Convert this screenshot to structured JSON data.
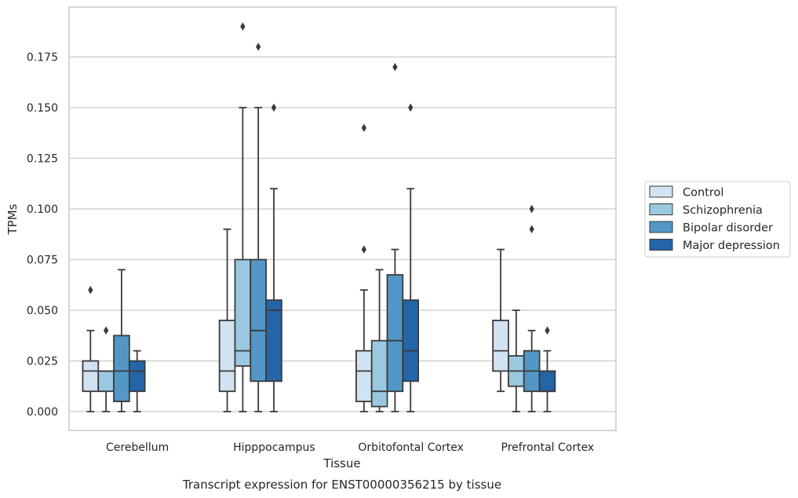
{
  "chart_data": {
    "type": "boxplot",
    "caption": "Transcript expression for ENST00000356215 by tissue",
    "xlabel": "Tissue",
    "ylabel": "TPMs",
    "ylim": [
      -0.018,
      0.198
    ],
    "yticks": [
      0.0,
      0.025,
      0.05,
      0.075,
      0.1,
      0.125,
      0.15,
      0.175
    ],
    "ytick_labels": [
      "0.000",
      "0.025",
      "0.050",
      "0.075",
      "0.100",
      "0.125",
      "0.150",
      "0.175"
    ],
    "grid": "horizontal",
    "legend_position": "right",
    "categories": [
      "Cerebellum",
      "Hipppocampus",
      "Orbitofontal Cortex",
      "Prefrontal Cortex"
    ],
    "series": [
      {
        "name": "Control",
        "color": "#d1e2f2",
        "boxes": [
          {
            "whislo": 0.0,
            "q1": 0.01,
            "med": 0.02,
            "q3": 0.025,
            "whishi": 0.04,
            "fliers": [
              0.06
            ]
          },
          {
            "whislo": 0.0,
            "q1": 0.01,
            "med": 0.02,
            "q3": 0.045,
            "whishi": 0.09,
            "fliers": []
          },
          {
            "whislo": 0.0,
            "q1": 0.005,
            "med": 0.02,
            "q3": 0.03,
            "whishi": 0.06,
            "fliers": [
              0.08,
              0.14
            ]
          },
          {
            "whislo": 0.01,
            "q1": 0.02,
            "med": 0.03,
            "q3": 0.045,
            "whishi": 0.08,
            "fliers": []
          }
        ]
      },
      {
        "name": "Schizophrenia",
        "color": "#9ac8e0",
        "boxes": [
          {
            "whislo": 0.0,
            "q1": 0.01,
            "med": 0.02,
            "q3": 0.02,
            "whishi": 0.02,
            "fliers": [
              0.04
            ]
          },
          {
            "whislo": 0.0,
            "q1": 0.0225,
            "med": 0.03,
            "q3": 0.075,
            "whishi": 0.15,
            "fliers": [
              0.19
            ]
          },
          {
            "whislo": 0.0,
            "q1": 0.0025,
            "med": 0.01,
            "q3": 0.035,
            "whishi": 0.07,
            "fliers": []
          },
          {
            "whislo": 0.0,
            "q1": 0.0125,
            "med": 0.02,
            "q3": 0.0275,
            "whishi": 0.05,
            "fliers": []
          }
        ]
      },
      {
        "name": "Bipolar disorder",
        "color": "#5297c6",
        "boxes": [
          {
            "whislo": 0.0,
            "q1": 0.005,
            "med": 0.02,
            "q3": 0.0375,
            "whishi": 0.07,
            "fliers": []
          },
          {
            "whislo": 0.0,
            "q1": 0.015,
            "med": 0.04,
            "q3": 0.075,
            "whishi": 0.15,
            "fliers": [
              0.18
            ]
          },
          {
            "whislo": 0.0,
            "q1": 0.01,
            "med": 0.035,
            "q3": 0.0675,
            "whishi": 0.08,
            "fliers": [
              0.17
            ]
          },
          {
            "whislo": 0.0,
            "q1": 0.01,
            "med": 0.02,
            "q3": 0.03,
            "whishi": 0.04,
            "fliers": [
              0.09,
              0.1
            ]
          }
        ]
      },
      {
        "name": "Major depression",
        "color": "#2465a8",
        "boxes": [
          {
            "whislo": 0.0,
            "q1": 0.01,
            "med": 0.02,
            "q3": 0.025,
            "whishi": 0.03,
            "fliers": []
          },
          {
            "whislo": 0.0,
            "q1": 0.015,
            "med": 0.05,
            "q3": 0.055,
            "whishi": 0.11,
            "fliers": [
              0.15
            ]
          },
          {
            "whislo": 0.0,
            "q1": 0.015,
            "med": 0.03,
            "q3": 0.055,
            "whishi": 0.11,
            "fliers": [
              0.15
            ]
          },
          {
            "whislo": 0.0,
            "q1": 0.01,
            "med": 0.01,
            "q3": 0.02,
            "whishi": 0.03,
            "fliers": [
              0.04
            ]
          }
        ]
      }
    ]
  }
}
